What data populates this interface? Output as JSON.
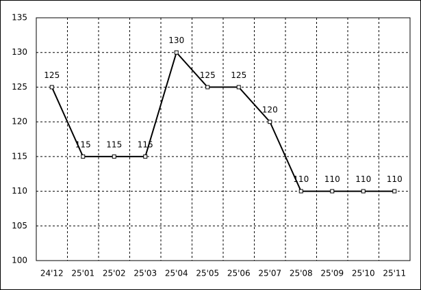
{
  "chart_data": {
    "type": "line",
    "categories": [
      "24'12",
      "25'01",
      "25'02",
      "25'03",
      "25'04",
      "25'05",
      "25'06",
      "25'07",
      "25'08",
      "25'09",
      "25'10",
      "25'11"
    ],
    "values": [
      125,
      115,
      115,
      115,
      130,
      125,
      125,
      120,
      110,
      110,
      110,
      110
    ],
    "color": "#000000",
    "ylim": [
      100,
      135
    ],
    "yticks": [
      100,
      105,
      110,
      115,
      120,
      125,
      130,
      135
    ],
    "grid": true
  }
}
